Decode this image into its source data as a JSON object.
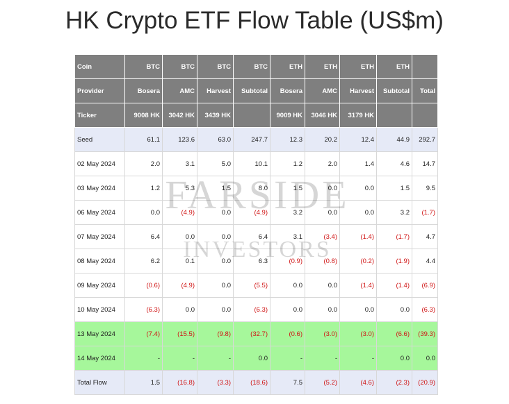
{
  "title": "HK Crypto ETF Flow Table (US$m)",
  "header_rows": [
    [
      "Coin",
      "BTC",
      "BTC",
      "BTC",
      "BTC",
      "ETH",
      "ETH",
      "ETH",
      "ETH",
      ""
    ],
    [
      "Provider",
      "Bosera",
      "AMC",
      "Harvest",
      "Subtotal",
      "Bosera",
      "AMC",
      "Harvest",
      "Subtotal",
      "Total"
    ],
    [
      "Ticker",
      "9008 HK",
      "3042 HK",
      "3439 HK",
      "",
      "9009 HK",
      "3046 HK",
      "3179 HK",
      "",
      ""
    ]
  ],
  "rows": [
    {
      "label": "Seed",
      "cells": [
        "61.1",
        "123.6",
        "63.0",
        "247.7",
        "12.3",
        "20.2",
        "12.4",
        "44.9",
        "292.7"
      ]
    },
    {
      "label": "02 May 2024",
      "cells": [
        "2.0",
        "3.1",
        "5.0",
        "10.1",
        "1.2",
        "2.0",
        "1.4",
        "4.6",
        "14.7"
      ]
    },
    {
      "label": "03 May 2024",
      "cells": [
        "1.2",
        "5.3",
        "1.5",
        "8.0",
        "1.5",
        "0.0",
        "0.0",
        "1.5",
        "9.5"
      ]
    },
    {
      "label": "06 May 2024",
      "cells": [
        "0.0",
        "(4.9)",
        "0.0",
        "(4.9)",
        "3.2",
        "0.0",
        "0.0",
        "3.2",
        "(1.7)"
      ]
    },
    {
      "label": "07 May 2024",
      "cells": [
        "6.4",
        "0.0",
        "0.0",
        "6.4",
        "3.1",
        "(3.4)",
        "(1.4)",
        "(1.7)",
        "4.7"
      ]
    },
    {
      "label": "08 May 2024",
      "cells": [
        "6.2",
        "0.1",
        "0.0",
        "6.3",
        "(0.9)",
        "(0.8)",
        "(0.2)",
        "(1.9)",
        "4.4"
      ]
    },
    {
      "label": "09 May 2024",
      "cells": [
        "(0.6)",
        "(4.9)",
        "0.0",
        "(5.5)",
        "0.0",
        "0.0",
        "(1.4)",
        "(1.4)",
        "(6.9)"
      ]
    },
    {
      "label": "10 May 2024",
      "cells": [
        "(6.3)",
        "0.0",
        "0.0",
        "(6.3)",
        "0.0",
        "0.0",
        "0.0",
        "0.0",
        "(6.3)"
      ]
    },
    {
      "label": "13 May 2024",
      "cells": [
        "(7.4)",
        "(15.5)",
        "(9.8)",
        "(32.7)",
        "(0.6)",
        "(3.0)",
        "(3.0)",
        "(6.6)",
        "(39.3)"
      ]
    },
    {
      "label": "14 May 2024",
      "cells": [
        "-",
        "-",
        "-",
        "0.0",
        "-",
        "-",
        "-",
        "0.0",
        "0.0"
      ]
    },
    {
      "label": "Total Flow",
      "cells": [
        "1.5",
        "(16.8)",
        "(3.3)",
        "(18.6)",
        "7.5",
        "(5.2)",
        "(4.6)",
        "(2.3)",
        "(20.9)"
      ]
    }
  ],
  "watermark": {
    "line1": "FARSIDE",
    "line2": "INVESTORS"
  },
  "colors": {
    "header_bg": "#7f7f7f",
    "seed_bg": "#e6eaf7",
    "highlight_bg": "#a6f79b",
    "negative": "#d01515"
  }
}
